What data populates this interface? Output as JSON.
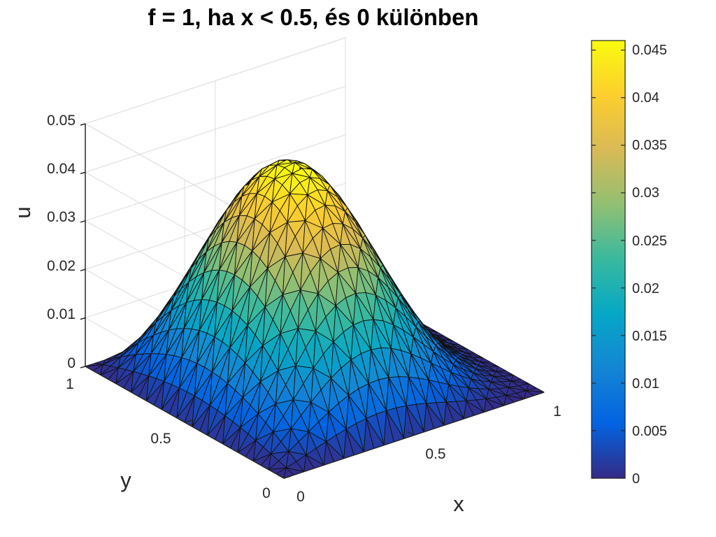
{
  "chart_data": {
    "type": "surface",
    "title": "f = 1, ha x < 0.5, és 0 különben",
    "xlabel": "x",
    "ylabel": "y",
    "zlabel": "u",
    "xlim": [
      0,
      1
    ],
    "ylim": [
      0,
      1
    ],
    "zlim": [
      0,
      0.05
    ],
    "x_ticks": [
      "0",
      "0.5",
      "1"
    ],
    "y_ticks": [
      "0",
      "0.5",
      "1"
    ],
    "z_ticks": [
      "0",
      "0.01",
      "0.02",
      "0.03",
      "0.04",
      "0.05"
    ],
    "z_max": 0.046,
    "peak_location": {
      "x": 0.4,
      "y": 0.5
    },
    "boundary_value": 0,
    "mesh": "triangular",
    "colormap": "parula",
    "colorbar": {
      "range": [
        0,
        0.046
      ],
      "ticks": [
        "0",
        "0.005",
        "0.01",
        "0.015",
        "0.02",
        "0.025",
        "0.03",
        "0.035",
        "0.04",
        "0.045"
      ]
    },
    "grid": true
  }
}
